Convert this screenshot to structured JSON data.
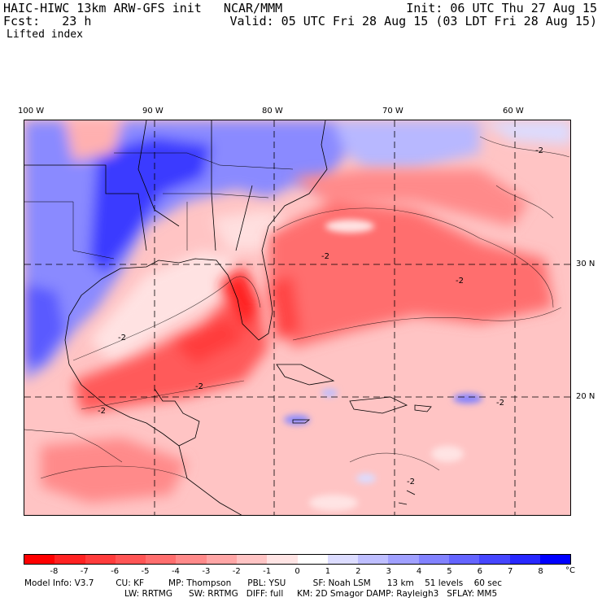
{
  "header": {
    "model": "HAIC-HIWC 13km ARW-GFS init   NCAR/MMM",
    "init": "Init: 06 UTC Thu 27 Aug 15",
    "fcst": "Fcst:   23 h",
    "valid": "Valid: 05 UTC Fri 28 Aug 15 (03 LDT Fri 28 Aug 15)",
    "field": "Lifted index"
  },
  "map": {
    "lon_labels": [
      "100 W",
      "90 W",
      "80 W",
      "70 W",
      "60 W"
    ],
    "lat_labels": [
      "30 N",
      "20 N"
    ],
    "contour_labels": [
      "-2",
      "-2",
      "-2",
      "-2",
      "-2",
      "-2",
      "-2",
      "-2"
    ]
  },
  "legend": {
    "ticks": [
      "-8",
      "-7",
      "-6",
      "-5",
      "-4",
      "-3",
      "-2",
      "-1",
      "0",
      "1",
      "2",
      "3",
      "4",
      "5",
      "6",
      "7",
      "8"
    ],
    "unit": "°C",
    "colors": [
      "#ff0000",
      "#ff2222",
      "#ff3c3c",
      "#ff5555",
      "#ff6e6e",
      "#ff8a8a",
      "#ffa6a6",
      "#ffc4c4",
      "#ffe4e4",
      "#ffffff",
      "#dcdcff",
      "#bebeff",
      "#a0a0ff",
      "#8282ff",
      "#6464ff",
      "#4646ff",
      "#2828ff",
      "#0000ff"
    ]
  },
  "model_info": {
    "line1": "Model Info: V3.7        CU: KF         MP: Thompson      PBL: YSU          SF: Noah LSM      13 km    51 levels    60 sec",
    "line2": "LW: RRTMG      SW: RRTMG   DIFF: full     KM: 2D Smagor DAMP: Rayleigh3   SFLAY: MM5"
  }
}
